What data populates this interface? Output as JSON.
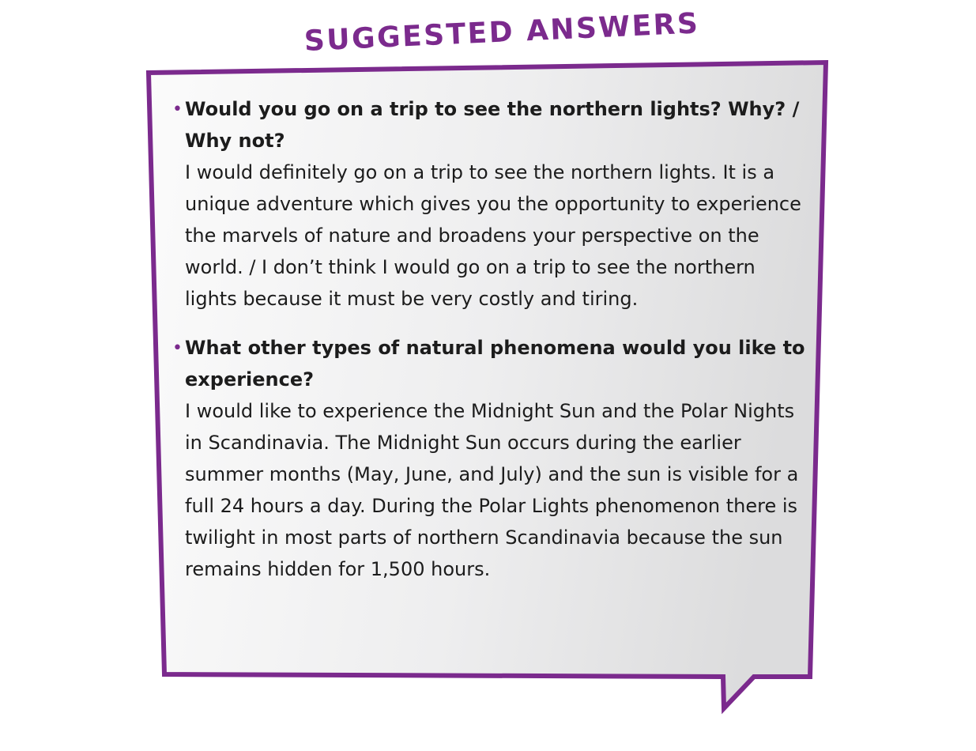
{
  "header": {
    "title": "SUGGESTED ANSWERS"
  },
  "colors": {
    "accent": "#7b2a8d",
    "bubble_fill_light": "#fbfbfb",
    "bubble_fill_dark": "#dcdcdd",
    "text": "#1c1c1c"
  },
  "items": [
    {
      "bullet": "•",
      "question": "Would you go on a trip to see the northern lights? Why? / Why not?",
      "answer": "I would definitely go on a trip to see the northern lights. It is a unique adventure which gives you the opportunity to experience the marvels of nature and broadens your perspective on the world. / I don’t think I would go on a trip to see the northern lights because it must be very costly and tiring."
    },
    {
      "bullet": "•",
      "question": "What other types of natural phenomena would you like to experience?",
      "answer": "I would like to experience the Midnight Sun and the Polar Nights in Scandinavia. The Midnight Sun occurs during the earlier summer months (May, June, and July) and the sun is visible for a full 24 hours a day. During the Polar Lights phenomenon there is twilight in most parts of northern Scandinavia because the sun remains hidden for 1,500 hours."
    }
  ]
}
